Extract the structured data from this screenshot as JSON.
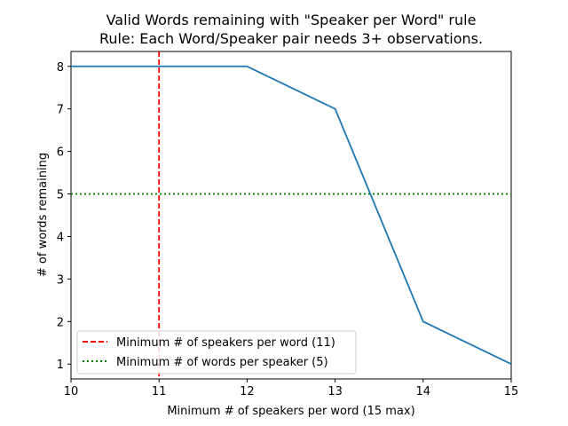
{
  "chart_data": {
    "type": "line",
    "title": "Valid Words remaining with \"Speaker per Word\" rule",
    "subtitle": "Rule: Each Word/Speaker pair needs 3+ observations.",
    "xlabel": "Minimum # of speakers per word (15 max)",
    "ylabel": "# of words remaining",
    "xlim": [
      10,
      15
    ],
    "ylim": [
      0.65,
      8.35
    ],
    "xticks": [
      10,
      11,
      12,
      13,
      14,
      15
    ],
    "yticks": [
      1,
      2,
      3,
      4,
      5,
      6,
      7,
      8
    ],
    "grid": false,
    "legend_position": "lower-left",
    "series": [
      {
        "x": [
          10,
          11,
          12,
          13,
          14,
          15
        ],
        "y": [
          8,
          8,
          8,
          7,
          2,
          1
        ],
        "color": "#1f77b4"
      }
    ],
    "reference_lines": [
      {
        "orientation": "vertical",
        "value": 11,
        "style": "dashed",
        "color": "#ff0000",
        "label": "Minimum # of speakers per word (11)"
      },
      {
        "orientation": "horizontal",
        "value": 5,
        "style": "dotted",
        "color": "#008000",
        "label": "Minimum # of words per speaker (5)"
      }
    ]
  }
}
